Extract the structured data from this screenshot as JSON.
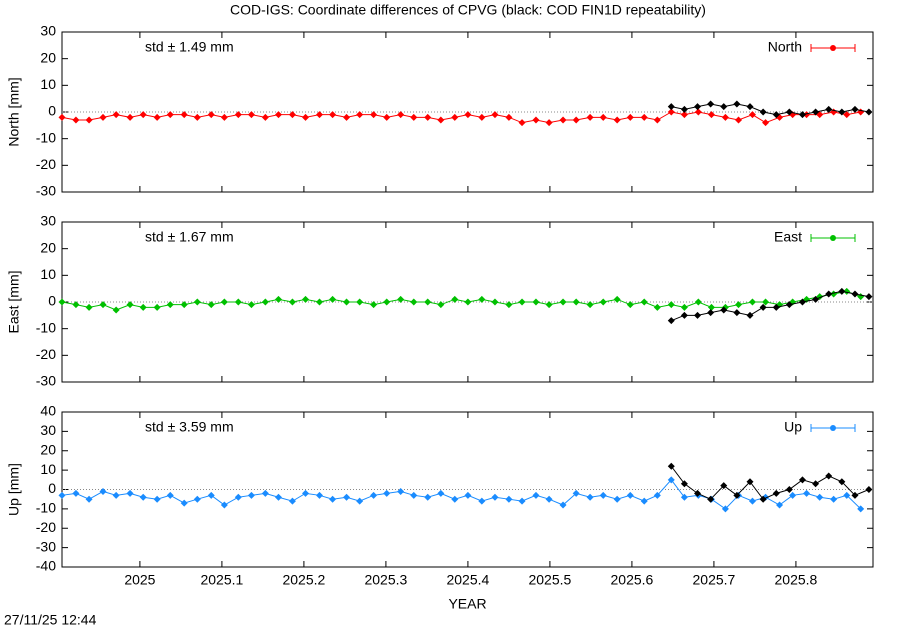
{
  "title": "COD-IGS: Coordinate differences of CPVG (black: COD FIN1D repeatability)",
  "timestamp": "27/11/25 12:44",
  "chart_data": [
    {
      "type": "line",
      "ylabel": "North [mm]",
      "annotation": "std ± 1.49 mm",
      "annotation_color": "#ff0000",
      "legend": "top-right",
      "zeroline": true,
      "xlim": [
        2024.905,
        2025.894
      ],
      "ylim": [
        -30,
        30
      ],
      "yticks": [
        -30,
        -20,
        -10,
        0,
        10,
        20,
        30
      ],
      "series": [
        {
          "name": "North",
          "color": "#ff0000",
          "x": [
            2024.905,
            2024.922,
            2024.938,
            2024.955,
            2024.971,
            2024.988,
            2025.004,
            2025.021,
            2025.037,
            2025.054,
            2025.07,
            2025.087,
            2025.103,
            2025.12,
            2025.136,
            2025.153,
            2025.169,
            2025.186,
            2025.202,
            2025.219,
            2025.235,
            2025.252,
            2025.268,
            2025.285,
            2025.301,
            2025.318,
            2025.334,
            2025.351,
            2025.367,
            2025.384,
            2025.4,
            2025.417,
            2025.433,
            2025.45,
            2025.466,
            2025.483,
            2025.499,
            2025.516,
            2025.532,
            2025.549,
            2025.565,
            2025.582,
            2025.598,
            2025.615,
            2025.631,
            2025.648,
            2025.664,
            2025.681,
            2025.697,
            2025.714,
            2025.73,
            2025.747,
            2025.763,
            2025.78,
            2025.796,
            2025.813,
            2025.829,
            2025.846,
            2025.862,
            2025.879
          ],
          "values": [
            -2,
            -3,
            -3,
            -2,
            -1,
            -2,
            -1,
            -2,
            -1,
            -1,
            -2,
            -1,
            -2,
            -1,
            -1,
            -2,
            -1,
            -1,
            -2,
            -1,
            -1,
            -2,
            -1,
            -1,
            -2,
            -1,
            -2,
            -2,
            -3,
            -2,
            -1,
            -2,
            -1,
            -2,
            -4,
            -3,
            -4,
            -3,
            -3,
            -2,
            -2,
            -3,
            -2,
            -2,
            -3,
            0,
            -1,
            0,
            -1,
            -2,
            -3,
            -1,
            -4,
            -2,
            -1,
            -1,
            -1,
            0,
            -1,
            0
          ]
        },
        {
          "color": "#000000",
          "x": [
            2025.648,
            2025.664,
            2025.68,
            2025.696,
            2025.712,
            2025.728,
            2025.744,
            2025.76,
            2025.776,
            2025.792,
            2025.808,
            2025.824,
            2025.84,
            2025.856,
            2025.872,
            2025.889
          ],
          "values": [
            2,
            1,
            2,
            3,
            2,
            3,
            2,
            0,
            -1,
            0,
            -1,
            0,
            1,
            0,
            1,
            0
          ]
        }
      ]
    },
    {
      "type": "line",
      "ylabel": "East [mm]",
      "annotation": "std ± 1.67 mm",
      "annotation_color": "#00c000",
      "legend": "top-right",
      "zeroline": true,
      "xlim": [
        2024.905,
        2025.894
      ],
      "ylim": [
        -30,
        30
      ],
      "yticks": [
        -30,
        -20,
        -10,
        0,
        10,
        20,
        30
      ],
      "series": [
        {
          "name": "East",
          "color": "#00c000",
          "x": [
            2024.905,
            2024.922,
            2024.938,
            2024.955,
            2024.971,
            2024.988,
            2025.004,
            2025.021,
            2025.037,
            2025.054,
            2025.07,
            2025.087,
            2025.103,
            2025.12,
            2025.136,
            2025.153,
            2025.169,
            2025.186,
            2025.202,
            2025.219,
            2025.235,
            2025.252,
            2025.268,
            2025.285,
            2025.301,
            2025.318,
            2025.334,
            2025.351,
            2025.367,
            2025.384,
            2025.4,
            2025.417,
            2025.433,
            2025.45,
            2025.466,
            2025.483,
            2025.499,
            2025.516,
            2025.532,
            2025.549,
            2025.565,
            2025.582,
            2025.598,
            2025.615,
            2025.631,
            2025.648,
            2025.664,
            2025.681,
            2025.697,
            2025.714,
            2025.73,
            2025.747,
            2025.763,
            2025.78,
            2025.796,
            2025.813,
            2025.829,
            2025.846,
            2025.862,
            2025.879
          ],
          "values": [
            0,
            -1,
            -2,
            -1,
            -3,
            -1,
            -2,
            -2,
            -1,
            -1,
            0,
            -1,
            0,
            0,
            -1,
            0,
            1,
            0,
            1,
            0,
            1,
            0,
            0,
            -1,
            0,
            1,
            0,
            0,
            -1,
            1,
            0,
            1,
            0,
            -1,
            0,
            0,
            -1,
            0,
            0,
            -1,
            0,
            1,
            -1,
            0,
            -2,
            -1,
            -2,
            0,
            -2,
            -2,
            -1,
            0,
            0,
            -1,
            0,
            1,
            2,
            3,
            4,
            2
          ]
        },
        {
          "color": "#000000",
          "x": [
            2025.648,
            2025.664,
            2025.68,
            2025.696,
            2025.712,
            2025.728,
            2025.744,
            2025.76,
            2025.776,
            2025.792,
            2025.808,
            2025.824,
            2025.84,
            2025.856,
            2025.872,
            2025.889
          ],
          "values": [
            -7,
            -5,
            -5,
            -4,
            -3,
            -4,
            -5,
            -2,
            -2,
            -1,
            0,
            1,
            3,
            4,
            3,
            2
          ]
        }
      ]
    },
    {
      "type": "line",
      "ylabel": "Up [mm]",
      "xlabel": "YEAR",
      "annotation": "std ± 3.59 mm",
      "annotation_color": "#1a8cff",
      "legend": "top-right",
      "zeroline": true,
      "xlim": [
        2024.905,
        2025.894
      ],
      "xticks": [
        2025,
        2025.1,
        2025.2,
        2025.3,
        2025.4,
        2025.5,
        2025.6,
        2025.7,
        2025.8
      ],
      "ylim": [
        -40,
        40
      ],
      "yticks": [
        -40,
        -30,
        -20,
        -10,
        0,
        10,
        20,
        30,
        40
      ],
      "series": [
        {
          "name": "Up",
          "color": "#1a8cff",
          "x": [
            2024.905,
            2024.922,
            2024.938,
            2024.955,
            2024.971,
            2024.988,
            2025.004,
            2025.021,
            2025.037,
            2025.054,
            2025.07,
            2025.087,
            2025.103,
            2025.12,
            2025.136,
            2025.153,
            2025.169,
            2025.186,
            2025.202,
            2025.219,
            2025.235,
            2025.252,
            2025.268,
            2025.285,
            2025.301,
            2025.318,
            2025.334,
            2025.351,
            2025.367,
            2025.384,
            2025.4,
            2025.417,
            2025.433,
            2025.45,
            2025.466,
            2025.483,
            2025.499,
            2025.516,
            2025.532,
            2025.549,
            2025.565,
            2025.582,
            2025.598,
            2025.615,
            2025.631,
            2025.648,
            2025.664,
            2025.681,
            2025.697,
            2025.714,
            2025.73,
            2025.747,
            2025.763,
            2025.78,
            2025.796,
            2025.813,
            2025.829,
            2025.846,
            2025.862,
            2025.879
          ],
          "values": [
            -3,
            -2,
            -5,
            -1,
            -3,
            -2,
            -4,
            -5,
            -3,
            -7,
            -5,
            -3,
            -8,
            -4,
            -3,
            -2,
            -4,
            -6,
            -2,
            -3,
            -5,
            -4,
            -6,
            -3,
            -2,
            -1,
            -3,
            -4,
            -2,
            -5,
            -3,
            -6,
            -4,
            -5,
            -6,
            -3,
            -5,
            -8,
            -2,
            -4,
            -3,
            -5,
            -3,
            -6,
            -3,
            5,
            -4,
            -3,
            -5,
            -10,
            -3,
            -6,
            -4,
            -8,
            -3,
            -2,
            -4,
            -5,
            -3,
            -10
          ]
        },
        {
          "color": "#000000",
          "x": [
            2025.648,
            2025.664,
            2025.68,
            2025.696,
            2025.712,
            2025.728,
            2025.744,
            2025.76,
            2025.776,
            2025.792,
            2025.808,
            2025.824,
            2025.84,
            2025.856,
            2025.872,
            2025.889
          ],
          "values": [
            12,
            3,
            -2,
            -5,
            2,
            -3,
            4,
            -5,
            -2,
            0,
            5,
            3,
            7,
            4,
            -3,
            0
          ]
        }
      ]
    }
  ]
}
